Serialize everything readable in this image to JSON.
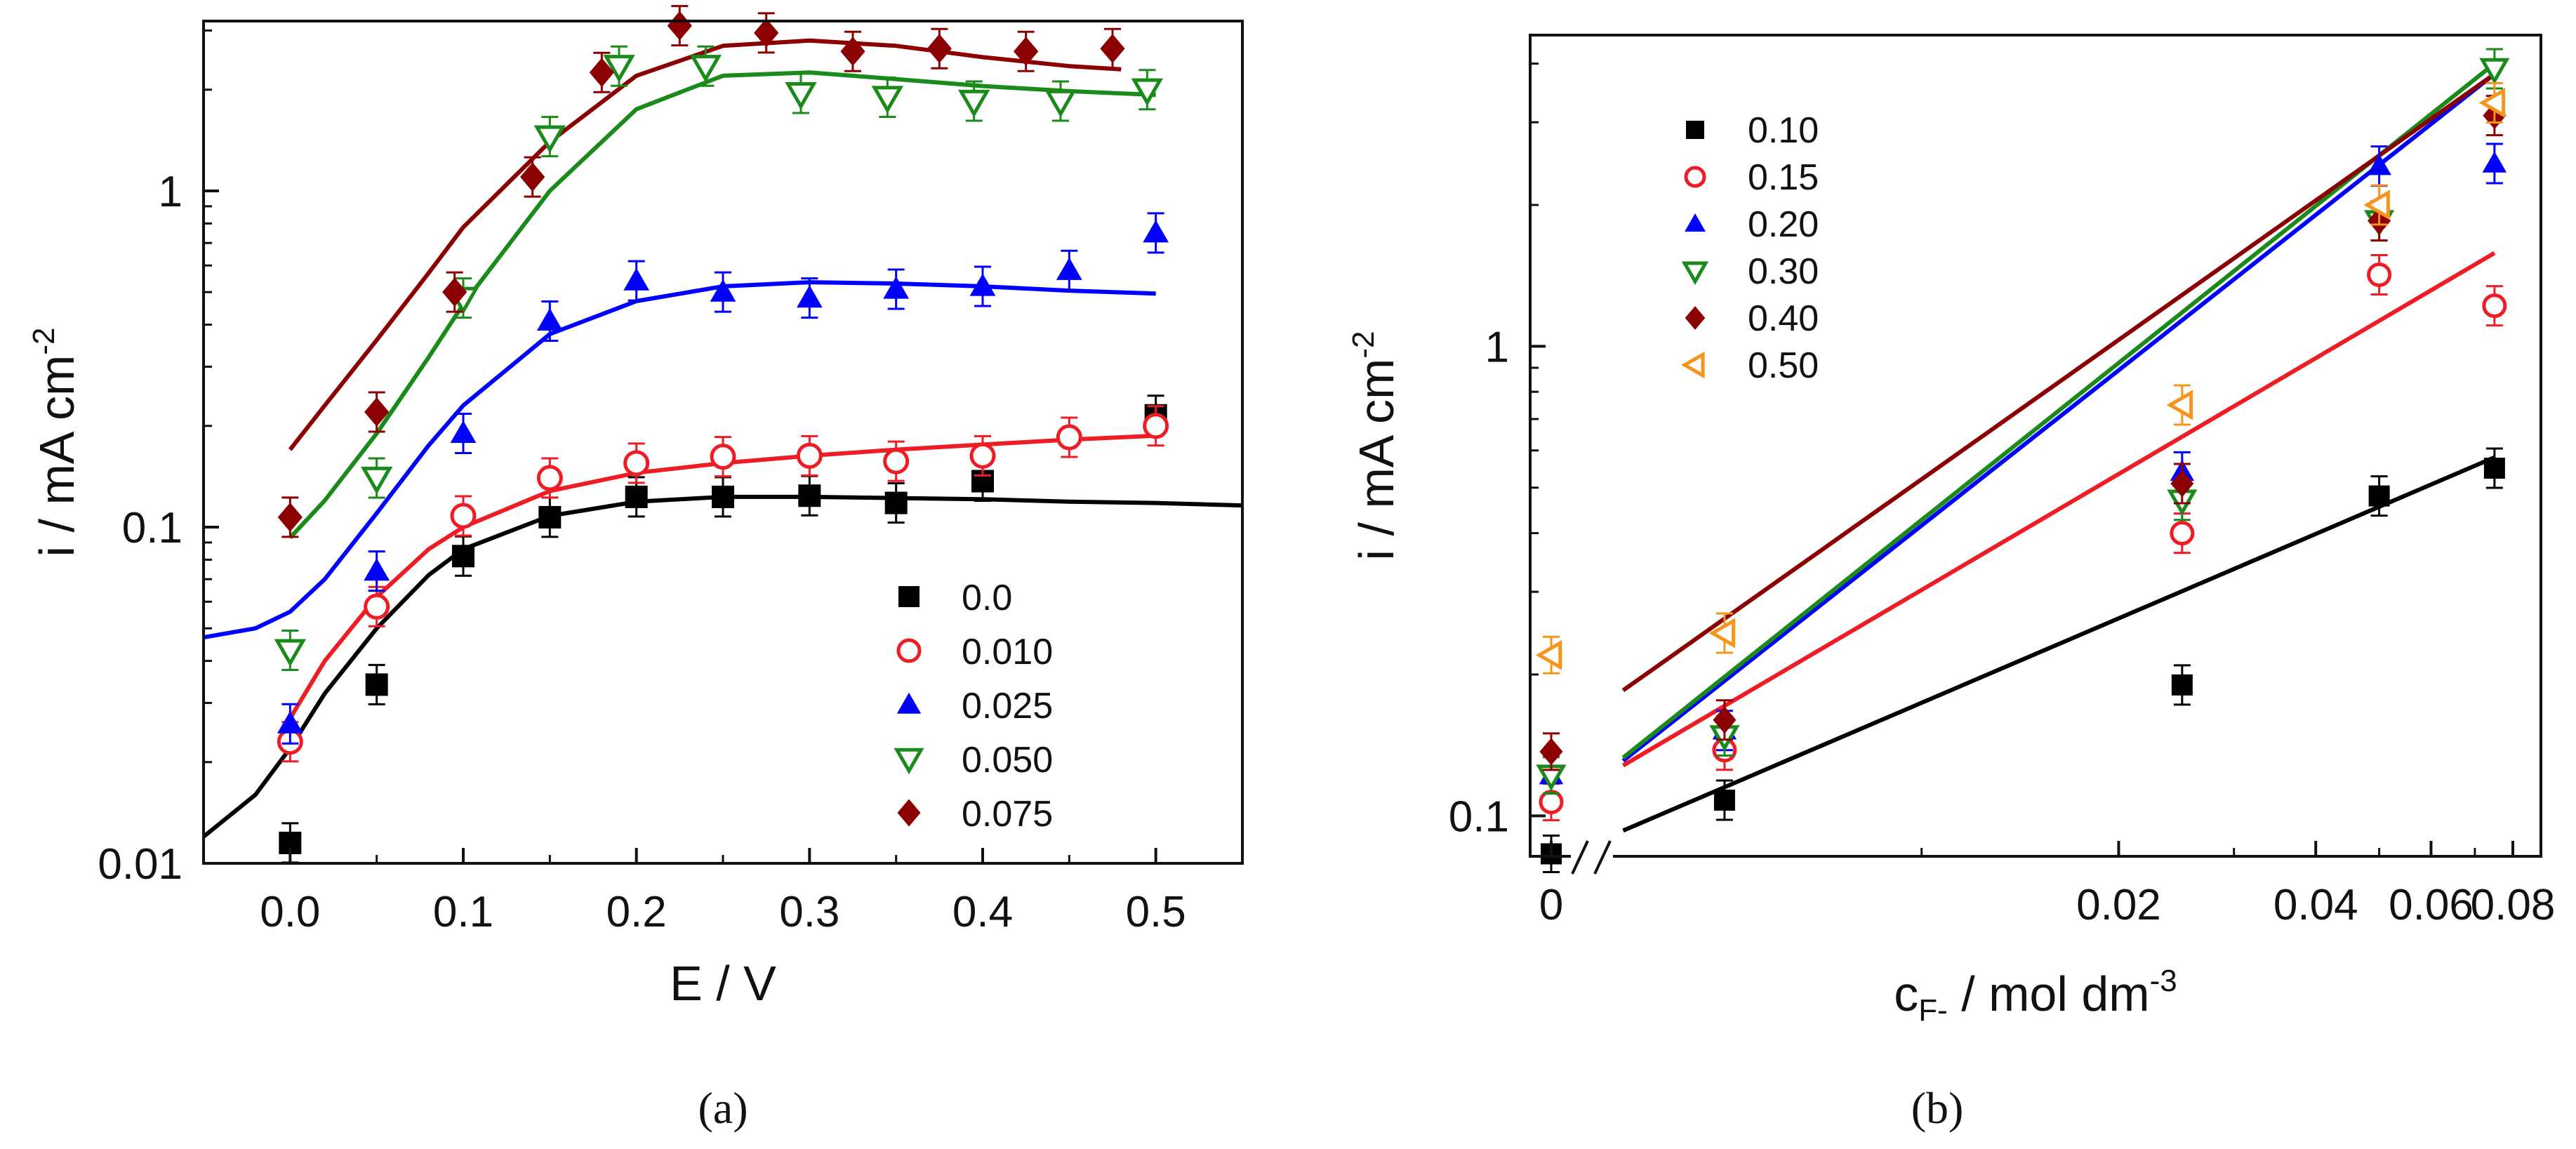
{
  "chart_data": [
    {
      "panel": "a",
      "panel_label": "(a)",
      "type": "scatter",
      "xlabel": "E / V",
      "ylabel": {
        "base": "i / mA cm",
        "sup": "-2"
      },
      "yscale": "log",
      "xlim": [
        -0.05,
        0.55
      ],
      "ylim": [
        0.01,
        3.2
      ],
      "xticks": [
        0.0,
        0.1,
        0.2,
        0.3,
        0.4,
        0.5
      ],
      "xtick_labels": [
        "0.0",
        "0.1",
        "0.2",
        "0.3",
        "0.4",
        "0.5"
      ],
      "yticks": [
        0.01,
        0.1,
        1
      ],
      "ytick_labels": [
        "0.01",
        "0.1",
        "1"
      ],
      "legend_position": "lower-right",
      "series": [
        {
          "name": "0.0",
          "color": "#000000",
          "marker": "square",
          "x": [
            0.0,
            0.05,
            0.1,
            0.15,
            0.2,
            0.25,
            0.3,
            0.35,
            0.4,
            0.5
          ],
          "y": [
            0.0115,
            0.034,
            0.082,
            0.107,
            0.123,
            0.123,
            0.124,
            0.118,
            0.137,
            0.215
          ],
          "fit_x": [
            -0.05,
            -0.02,
            0.0,
            0.02,
            0.05,
            0.08,
            0.1,
            0.15,
            0.2,
            0.25,
            0.3,
            0.35,
            0.4,
            0.45,
            0.5,
            0.55
          ],
          "fit_y": [
            0.012,
            0.016,
            0.022,
            0.032,
            0.05,
            0.072,
            0.086,
            0.108,
            0.119,
            0.123,
            0.123,
            0.122,
            0.121,
            0.119,
            0.118,
            0.116
          ]
        },
        {
          "name": "0.010",
          "color": "#ee1c24",
          "marker": "circle-open",
          "x": [
            0.0,
            0.05,
            0.1,
            0.15,
            0.2,
            0.25,
            0.3,
            0.35,
            0.4,
            0.45,
            0.5
          ],
          "y": [
            0.023,
            0.058,
            0.108,
            0.14,
            0.155,
            0.162,
            0.163,
            0.157,
            0.163,
            0.185,
            0.2
          ],
          "fit_x": [
            0.0,
            0.02,
            0.05,
            0.08,
            0.1,
            0.15,
            0.2,
            0.25,
            0.3,
            0.35,
            0.4,
            0.45,
            0.5
          ],
          "fit_y": [
            0.027,
            0.04,
            0.062,
            0.086,
            0.1,
            0.128,
            0.145,
            0.155,
            0.163,
            0.17,
            0.176,
            0.182,
            0.187
          ]
        },
        {
          "name": "0.025",
          "color": "#0000ff",
          "marker": "triangle-up",
          "x": [
            0.0,
            0.05,
            0.1,
            0.15,
            0.2,
            0.25,
            0.3,
            0.35,
            0.4,
            0.45,
            0.5
          ],
          "y": [
            0.026,
            0.074,
            0.19,
            0.41,
            0.54,
            0.5,
            0.48,
            0.51,
            0.52,
            0.58,
            0.75
          ],
          "fit_x": [
            -0.05,
            -0.02,
            0.0,
            0.02,
            0.05,
            0.08,
            0.1,
            0.15,
            0.2,
            0.25,
            0.3,
            0.35,
            0.4,
            0.45,
            0.5
          ],
          "fit_y": [
            0.047,
            0.05,
            0.056,
            0.07,
            0.11,
            0.175,
            0.23,
            0.375,
            0.47,
            0.52,
            0.535,
            0.53,
            0.52,
            0.505,
            0.495
          ]
        },
        {
          "name": "0.050",
          "color": "#1a8a1a",
          "marker": "triangle-down-open",
          "x": [
            0.0,
            0.05,
            0.1,
            0.15,
            0.19,
            0.24,
            0.295,
            0.345,
            0.395,
            0.445,
            0.495
          ],
          "y": [
            0.043,
            0.14,
            0.48,
            1.45,
            2.35,
            2.35,
            1.95,
            1.9,
            1.85,
            1.85,
            2.0
          ],
          "fit_x": [
            0.0,
            0.02,
            0.05,
            0.08,
            0.1,
            0.15,
            0.2,
            0.25,
            0.3,
            0.35,
            0.4,
            0.45,
            0.5
          ],
          "fit_y": [
            0.093,
            0.12,
            0.19,
            0.32,
            0.46,
            1.0,
            1.75,
            2.2,
            2.25,
            2.15,
            2.05,
            1.98,
            1.93
          ]
        },
        {
          "name": "0.075",
          "color": "#8b0000",
          "marker": "diamond",
          "x": [
            0.0,
            0.05,
            0.095,
            0.14,
            0.18,
            0.225,
            0.275,
            0.325,
            0.375,
            0.425,
            0.475
          ],
          "y": [
            0.107,
            0.22,
            0.5,
            1.1,
            2.25,
            3.1,
            2.95,
            2.6,
            2.65,
            2.6,
            2.65
          ],
          "fit_x": [
            0.0,
            0.02,
            0.05,
            0.08,
            0.1,
            0.15,
            0.2,
            0.25,
            0.3,
            0.35,
            0.4,
            0.45,
            0.48
          ],
          "fit_y": [
            0.17,
            0.23,
            0.36,
            0.57,
            0.78,
            1.4,
            2.2,
            2.7,
            2.8,
            2.7,
            2.5,
            2.35,
            2.3
          ]
        }
      ]
    },
    {
      "panel": "b",
      "panel_label": "(b)",
      "type": "scatter",
      "xlabel": {
        "base": "c",
        "sub": "F-",
        "rest": " / mol dm",
        "sup": "-3"
      },
      "ylabel": {
        "base": "i / mA cm",
        "sup": "-2"
      },
      "yscale": "log",
      "xscale": "log-with-break",
      "xlim": [
        0.003,
        0.08
      ],
      "ylim": [
        0.082,
        4.6
      ],
      "zero_label": "0",
      "xticks": [
        0.02,
        0.04,
        0.06,
        0.08
      ],
      "xtick_labels": [
        "0.02",
        "0.04",
        "0.06",
        "0.08"
      ],
      "yticks": [
        0.1,
        1
      ],
      "ytick_labels": [
        "0.1",
        "1"
      ],
      "legend_position": "top-left",
      "series": [
        {
          "name": "0.10",
          "color": "#000000",
          "marker": "square",
          "x_zero": true,
          "y_zero": 0.083,
          "x": [
            0.005,
            0.025,
            0.05,
            0.075
          ],
          "y": [
            0.108,
            0.19,
            0.48,
            0.55
          ],
          "fit_x": [
            0.0035,
            0.075
          ],
          "fit_y": [
            0.093,
            0.58
          ]
        },
        {
          "name": "0.15",
          "color": "#ee1c24",
          "marker": "circle-open",
          "x_zero": true,
          "y_zero": 0.107,
          "x": [
            0.005,
            0.025,
            0.05,
            0.075
          ],
          "y": [
            0.138,
            0.4,
            1.42,
            1.22
          ],
          "fit_x": [
            0.0035,
            0.075
          ],
          "fit_y": [
            0.128,
            1.58
          ]
        },
        {
          "name": "0.20",
          "color": "#0000ff",
          "marker": "triangle-up",
          "x_zero": true,
          "y_zero": 0.122,
          "x": [
            0.005,
            0.025,
            0.05,
            0.075
          ],
          "y": [
            0.152,
            0.54,
            2.42,
            2.45
          ],
          "fit_x": [
            0.0035,
            0.075
          ],
          "fit_y": [
            0.131,
            3.8
          ]
        },
        {
          "name": "0.30",
          "color": "#1a8a1a",
          "marker": "triangle-down-open",
          "x_zero": true,
          "y_zero": 0.122,
          "x": [
            0.005,
            0.025,
            0.05,
            0.075
          ],
          "y": [
            0.148,
            0.47,
            1.85,
            3.9
          ],
          "fit_x": [
            0.0035,
            0.075
          ],
          "fit_y": [
            0.133,
            4.0
          ]
        },
        {
          "name": "0.40",
          "color": "#8b0000",
          "marker": "diamond",
          "x_zero": true,
          "y_zero": 0.137,
          "x": [
            0.005,
            0.025,
            0.05,
            0.075
          ],
          "y": [
            0.16,
            0.51,
            1.85,
            3.1
          ],
          "fit_x": [
            0.0035,
            0.075
          ],
          "fit_y": [
            0.185,
            3.8
          ]
        },
        {
          "name": "0.50",
          "color": "#f7941d",
          "marker": "triangle-left-open",
          "x_zero": true,
          "y_zero": 0.22,
          "x": [
            0.005,
            0.025,
            0.05,
            0.075
          ],
          "y": [
            0.245,
            0.75,
            2.0,
            3.3
          ],
          "fit_x": [],
          "fit_y": []
        }
      ]
    }
  ]
}
